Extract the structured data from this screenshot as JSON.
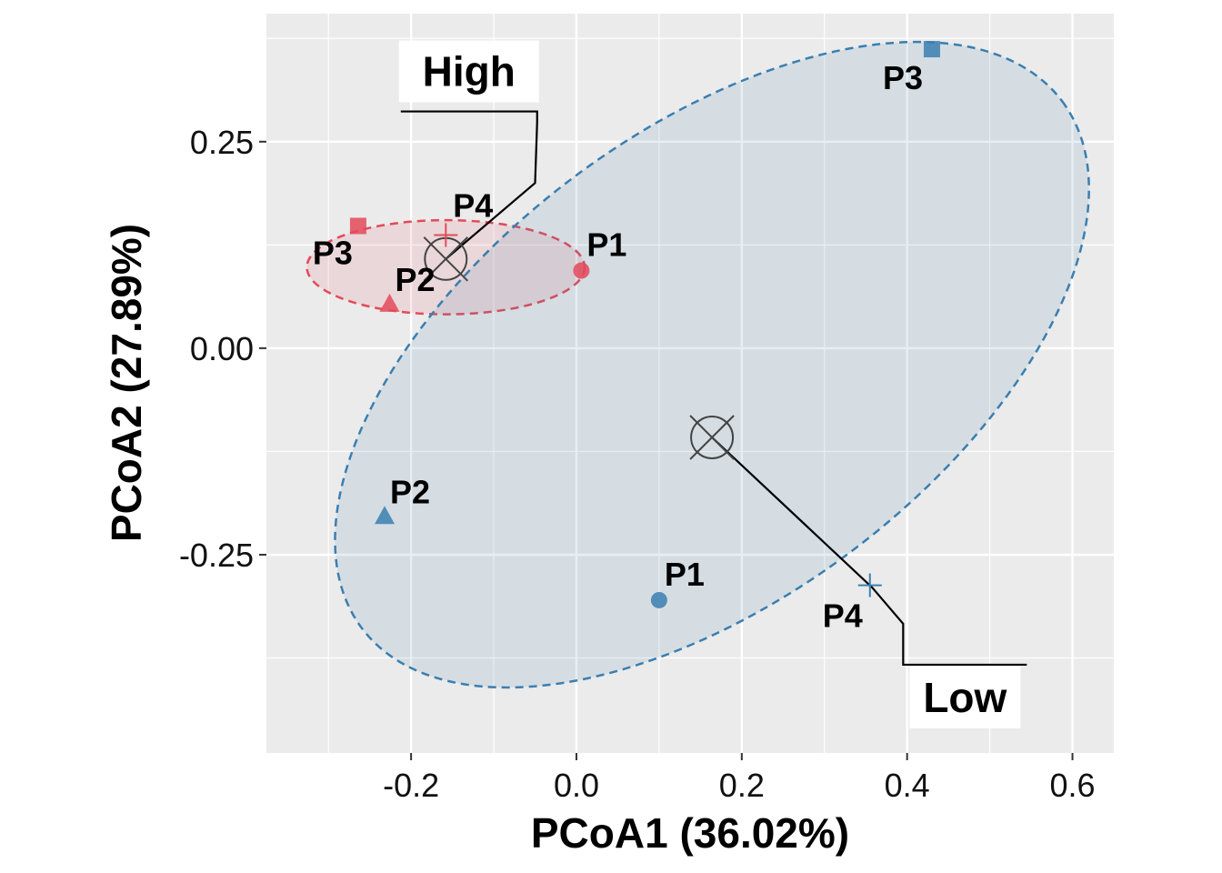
{
  "chart_data": {
    "type": "scatter",
    "xlabel": "PCoA1 (36.02%)",
    "ylabel": "PCoA2 (27.89%)",
    "xlim": [
      -0.375,
      0.65
    ],
    "ylim": [
      -0.49,
      0.405
    ],
    "x_ticks": [
      {
        "value": -0.2,
        "label": "-0.2"
      },
      {
        "value": 0.0,
        "label": "0.0"
      },
      {
        "value": 0.2,
        "label": "0.2"
      },
      {
        "value": 0.4,
        "label": "0.4"
      },
      {
        "value": 0.6,
        "label": "0.6"
      }
    ],
    "y_ticks": [
      {
        "value": 0.25,
        "label": "0.25"
      },
      {
        "value": 0.0,
        "label": "0.00"
      },
      {
        "value": -0.25,
        "label": "-0.25"
      }
    ],
    "grid": true,
    "groups": [
      {
        "name": "High",
        "color": "#e34a5a",
        "centroid": {
          "x": -0.158,
          "y": 0.108
        },
        "ellipse": {
          "cx": -0.158,
          "cy": 0.098,
          "rx": 0.168,
          "ry": 0.057,
          "angle_deg": 0
        },
        "label_anchor": {
          "x": -0.05,
          "y": 0.2
        },
        "label_text": {
          "x": -0.13,
          "y": 0.335
        },
        "points": [
          {
            "label": "P1",
            "x": 0.006,
            "y": 0.094,
            "shape": "circle"
          },
          {
            "label": "P2",
            "x": -0.226,
            "y": 0.054,
            "shape": "triangle"
          },
          {
            "label": "P3",
            "x": -0.264,
            "y": 0.148,
            "shape": "square"
          },
          {
            "label": "P4",
            "x": -0.158,
            "y": 0.137,
            "shape": "plus"
          }
        ]
      },
      {
        "name": "Low",
        "color": "#3a7fb0",
        "centroid": {
          "x": 0.164,
          "y": -0.108
        },
        "ellipse": {
          "cx": 0.164,
          "cy": -0.02,
          "rx": 0.53,
          "ry": 0.282,
          "angle_deg": 37
        },
        "label_anchor": {
          "x": 0.358,
          "y": -0.29
        },
        "label_text": {
          "x": 0.47,
          "y": -0.425
        },
        "points": [
          {
            "label": "P1",
            "x": 0.1,
            "y": -0.305,
            "shape": "circle"
          },
          {
            "label": "P2",
            "x": -0.232,
            "y": -0.203,
            "shape": "triangle"
          },
          {
            "label": "P3",
            "x": 0.43,
            "y": 0.362,
            "shape": "square"
          },
          {
            "label": "P4",
            "x": 0.355,
            "y": -0.287,
            "shape": "plus"
          }
        ]
      }
    ]
  }
}
